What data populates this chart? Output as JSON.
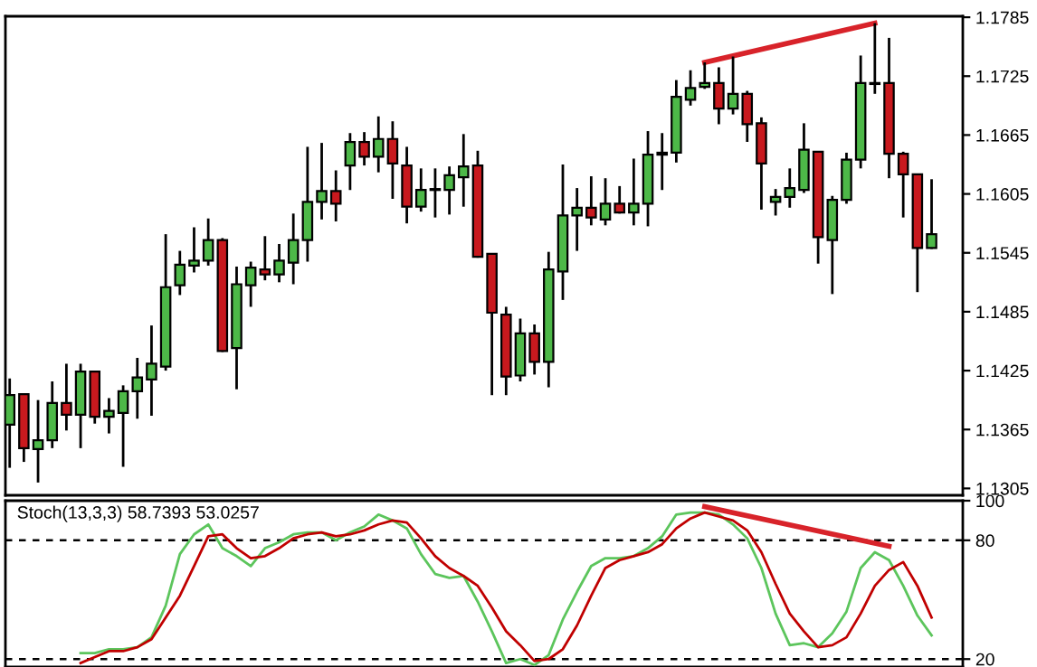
{
  "chart_data": [
    {
      "type": "candlestick",
      "categories": [
        null,
        null,
        null,
        null,
        null,
        null,
        null,
        null,
        null,
        null,
        null,
        null,
        null,
        null,
        null,
        null,
        null,
        null,
        null,
        null,
        null,
        null,
        null,
        null,
        null,
        null,
        null,
        null,
        null,
        null,
        null,
        null,
        null,
        null,
        null,
        null,
        null,
        null,
        null,
        null,
        null,
        null,
        null,
        null,
        null,
        null,
        null,
        null,
        null,
        null,
        null,
        null,
        null,
        null,
        null,
        null,
        null,
        null,
        null,
        null,
        null,
        null,
        null,
        null,
        null,
        null
      ],
      "ohlc": [
        [
          1.137,
          1.1417,
          1.1326,
          1.14
        ],
        [
          1.1401,
          1.1401,
          1.1332,
          1.1346
        ],
        [
          1.1345,
          1.1395,
          1.1311,
          1.1354
        ],
        [
          1.1354,
          1.1414,
          1.1346,
          1.1392
        ],
        [
          1.1392,
          1.1432,
          1.1364,
          1.138
        ],
        [
          1.138,
          1.1432,
          1.1346,
          1.1424
        ],
        [
          1.1424,
          1.1424,
          1.1371,
          1.1378
        ],
        [
          1.1378,
          1.1397,
          1.1361,
          1.1384
        ],
        [
          1.1382,
          1.141,
          1.1327,
          1.1404
        ],
        [
          1.1404,
          1.1438,
          1.1376,
          1.1418
        ],
        [
          1.1416,
          1.1471,
          1.1379,
          1.1432
        ],
        [
          1.1429,
          1.1564,
          1.1425,
          1.151
        ],
        [
          1.1512,
          1.1547,
          1.1502,
          1.1533
        ],
        [
          1.1532,
          1.1571,
          1.1525,
          1.1537
        ],
        [
          1.1537,
          1.158,
          1.1532,
          1.1558
        ],
        [
          1.1558,
          1.156,
          1.1444,
          1.1445
        ],
        [
          1.1448,
          1.1531,
          1.1406,
          1.1513
        ],
        [
          1.1512,
          1.1536,
          1.149,
          1.153
        ],
        [
          1.1528,
          1.1562,
          1.1517,
          1.1523
        ],
        [
          1.1523,
          1.1554,
          1.1515,
          1.1537
        ],
        [
          1.1535,
          1.1585,
          1.1513,
          1.1558
        ],
        [
          1.1558,
          1.1653,
          1.1536,
          1.1597
        ],
        [
          1.1597,
          1.1657,
          1.1579,
          1.1608
        ],
        [
          1.1608,
          1.1629,
          1.1577,
          1.1595
        ],
        [
          1.1634,
          1.1667,
          1.1609,
          1.1658
        ],
        [
          1.1658,
          1.1668,
          1.1634,
          1.1643
        ],
        [
          1.1643,
          1.1684,
          1.1627,
          1.1661
        ],
        [
          1.1661,
          1.1679,
          1.16,
          1.1636
        ],
        [
          1.1634,
          1.1653,
          1.1575,
          1.1592
        ],
        [
          1.1592,
          1.1631,
          1.1587,
          1.1609
        ],
        [
          1.1609,
          1.1631,
          1.1581,
          1.161
        ],
        [
          1.1609,
          1.1633,
          1.1584,
          1.1624
        ],
        [
          1.1622,
          1.1666,
          1.1592,
          1.1633
        ],
        [
          1.1634,
          1.1649,
          1.154,
          1.1541
        ],
        [
          1.1544,
          1.1544,
          1.14,
          1.1484
        ],
        [
          1.1482,
          1.149,
          1.14,
          1.1419
        ],
        [
          1.142,
          1.1478,
          1.1414,
          1.1463
        ],
        [
          1.1463,
          1.1472,
          1.1421,
          1.1434
        ],
        [
          1.1434,
          1.1546,
          1.1408,
          1.1528
        ],
        [
          1.1526,
          1.1635,
          1.1497,
          1.1583
        ],
        [
          1.1583,
          1.1611,
          1.1547,
          1.1591
        ],
        [
          1.1591,
          1.1623,
          1.1573,
          1.1581
        ],
        [
          1.1579,
          1.1621,
          1.1573,
          1.1595
        ],
        [
          1.1595,
          1.1613,
          1.1585,
          1.1586
        ],
        [
          1.1586,
          1.1641,
          1.1573,
          1.1595
        ],
        [
          1.1595,
          1.1669,
          1.1572,
          1.1645
        ],
        [
          1.1645,
          1.1667,
          1.1609,
          1.1647
        ],
        [
          1.1647,
          1.1721,
          1.1637,
          1.1704
        ],
        [
          1.1701,
          1.1731,
          1.1695,
          1.1713
        ],
        [
          1.1714,
          1.1739,
          1.1712,
          1.1718
        ],
        [
          1.1718,
          1.1734,
          1.1676,
          1.1692
        ],
        [
          1.1692,
          1.1745,
          1.1686,
          1.1707
        ],
        [
          1.1707,
          1.171,
          1.1658,
          1.1676
        ],
        [
          1.1677,
          1.1683,
          1.1589,
          1.1636
        ],
        [
          1.1597,
          1.161,
          1.1583,
          1.1602
        ],
        [
          1.1602,
          1.1631,
          1.1591,
          1.1611
        ],
        [
          1.1609,
          1.1677,
          1.1606,
          1.165
        ],
        [
          1.1648,
          1.1648,
          1.1534,
          1.1561
        ],
        [
          1.1558,
          1.1603,
          1.1503,
          1.1599
        ],
        [
          1.1599,
          1.1647,
          1.1595,
          1.164
        ],
        [
          1.164,
          1.1746,
          1.1631,
          1.1718
        ],
        [
          1.1717,
          1.1779,
          1.1707,
          1.1718
        ],
        [
          1.1718,
          1.1764,
          1.1621,
          1.1646
        ],
        [
          1.1646,
          1.1648,
          1.1581,
          1.1625
        ],
        [
          1.1625,
          1.1625,
          1.1505,
          1.155
        ],
        [
          1.155,
          1.162,
          1.1549,
          1.1564
        ]
      ],
      "colors": [
        "#4db848",
        "#c8191e",
        "#4db848",
        "#4db848",
        "#c8191e",
        "#4db848",
        "#c8191e",
        "#4db848",
        "#4db848",
        "#4db848",
        "#4db848",
        "#4db848",
        "#4db848",
        "#4db848",
        "#4db848",
        "#c8191e",
        "#4db848",
        "#4db848",
        "#c8191e",
        "#4db848",
        "#4db848",
        "#4db848",
        "#4db848",
        "#c8191e",
        "#4db848",
        "#c8191e",
        "#4db848",
        "#c8191e",
        "#c8191e",
        "#4db848",
        "#4db848",
        "#4db848",
        "#4db848",
        "#c8191e",
        "#c8191e",
        "#c8191e",
        "#4db848",
        "#c8191e",
        "#4db848",
        "#4db848",
        "#4db848",
        "#c8191e",
        "#4db848",
        "#c8191e",
        "#4db848",
        "#4db848",
        "#4db848",
        "#4db848",
        "#4db848",
        "#4db848",
        "#c8191e",
        "#4db848",
        "#c8191e",
        "#c8191e",
        "#4db848",
        "#4db848",
        "#4db848",
        "#c8191e",
        "#4db848",
        "#4db848",
        "#4db848",
        "#4db848",
        "#c8191e",
        "#c8191e",
        "#c8191e",
        "#4db848"
      ],
      "series": [
        {
          "type": "line",
          "color": "#d8232a",
          "values": [
            null,
            null,
            null,
            null,
            null,
            null,
            null,
            null,
            null,
            null,
            null,
            null,
            null,
            null,
            null,
            null,
            null,
            null,
            null,
            null,
            null,
            null,
            null,
            null,
            null,
            null,
            null,
            null,
            null,
            null,
            null,
            null,
            null,
            null,
            null,
            null,
            null,
            null,
            null,
            null,
            null,
            null,
            null,
            null,
            null,
            null,
            null,
            null,
            null,
            1.1739,
            null,
            null,
            null,
            null,
            null,
            null,
            null,
            null,
            null,
            null,
            null,
            1.1779,
            null,
            null,
            null,
            null
          ]
        }
      ],
      "ylim": [
        1.1298,
        1.1786
      ],
      "yticks": [
        1.1305,
        1.1365,
        1.1425,
        1.1485,
        1.1545,
        1.1605,
        1.1665,
        1.1725,
        1.1785
      ],
      "tick_labels": "y",
      "grid": false,
      "legend": false
    },
    {
      "type": "line",
      "title": "Stoch(13,3,3) 58.7393 53.0257",
      "categories": [
        null,
        null,
        null,
        null,
        null,
        null,
        null,
        null,
        null,
        null,
        null,
        null,
        null,
        null,
        null,
        null,
        null,
        null,
        null,
        null,
        null,
        null,
        null,
        null,
        null,
        null,
        null,
        null,
        null,
        null,
        null,
        null,
        null,
        null,
        null,
        null,
        null,
        null,
        null,
        null,
        null,
        null,
        null,
        null,
        null,
        null,
        null,
        null,
        null,
        null,
        null,
        null,
        null,
        null,
        null,
        null,
        null,
        null,
        null,
        null,
        null,
        null,
        null,
        null,
        null,
        null
      ],
      "series": [
        {
          "color": "#5cc55c",
          "values": [
            null,
            null,
            null,
            null,
            null,
            23,
            23,
            25,
            25,
            26,
            31,
            47,
            73,
            83,
            88,
            76,
            72,
            67,
            76,
            79,
            83,
            84,
            84,
            80,
            84,
            87,
            93,
            90,
            86,
            73,
            63,
            61,
            62,
            49,
            34,
            18,
            20,
            17,
            22,
            40,
            54,
            67,
            71,
            71,
            72,
            76,
            82,
            93,
            94,
            94,
            93,
            88,
            81,
            66,
            43,
            27,
            28,
            26,
            33,
            44,
            66,
            74,
            70,
            57,
            42,
            32
          ]
        },
        {
          "color": "#c00000",
          "values": [
            null,
            null,
            null,
            null,
            null,
            18,
            21,
            24,
            24,
            26,
            30,
            41,
            52,
            67,
            82,
            83,
            76,
            71,
            72,
            76,
            81,
            83,
            84,
            82,
            83,
            85,
            88,
            90,
            89,
            81,
            72,
            66,
            62,
            57,
            46,
            34,
            27,
            19,
            20,
            25,
            37,
            52,
            66,
            70,
            72,
            74,
            78,
            86,
            91,
            94,
            92,
            90,
            85,
            74,
            58,
            43,
            34,
            26,
            27,
            31,
            43,
            57,
            65,
            69,
            57,
            41
          ]
        },
        {
          "color": "#d8232a",
          "values": [
            null,
            null,
            null,
            null,
            null,
            null,
            null,
            null,
            null,
            null,
            null,
            null,
            null,
            null,
            null,
            null,
            null,
            null,
            null,
            null,
            null,
            null,
            null,
            null,
            null,
            null,
            null,
            null,
            null,
            null,
            null,
            null,
            null,
            null,
            null,
            null,
            null,
            null,
            null,
            null,
            null,
            null,
            null,
            null,
            null,
            null,
            null,
            null,
            null,
            97,
            null,
            null,
            null,
            null,
            null,
            null,
            null,
            null,
            null,
            null,
            null,
            null,
            77,
            null,
            null,
            null
          ]
        }
      ],
      "ref_lines": [
        {
          "axis": "y",
          "value": 20,
          "color": "#000000",
          "line_style": "dashed"
        },
        {
          "axis": "y",
          "value": 80,
          "color": "#000000",
          "line_style": "dashed"
        }
      ],
      "ylim": [
        16,
        100
      ],
      "yticks": [
        20,
        80,
        100
      ],
      "tick_labels": "y",
      "grid": false,
      "legend": false
    }
  ]
}
